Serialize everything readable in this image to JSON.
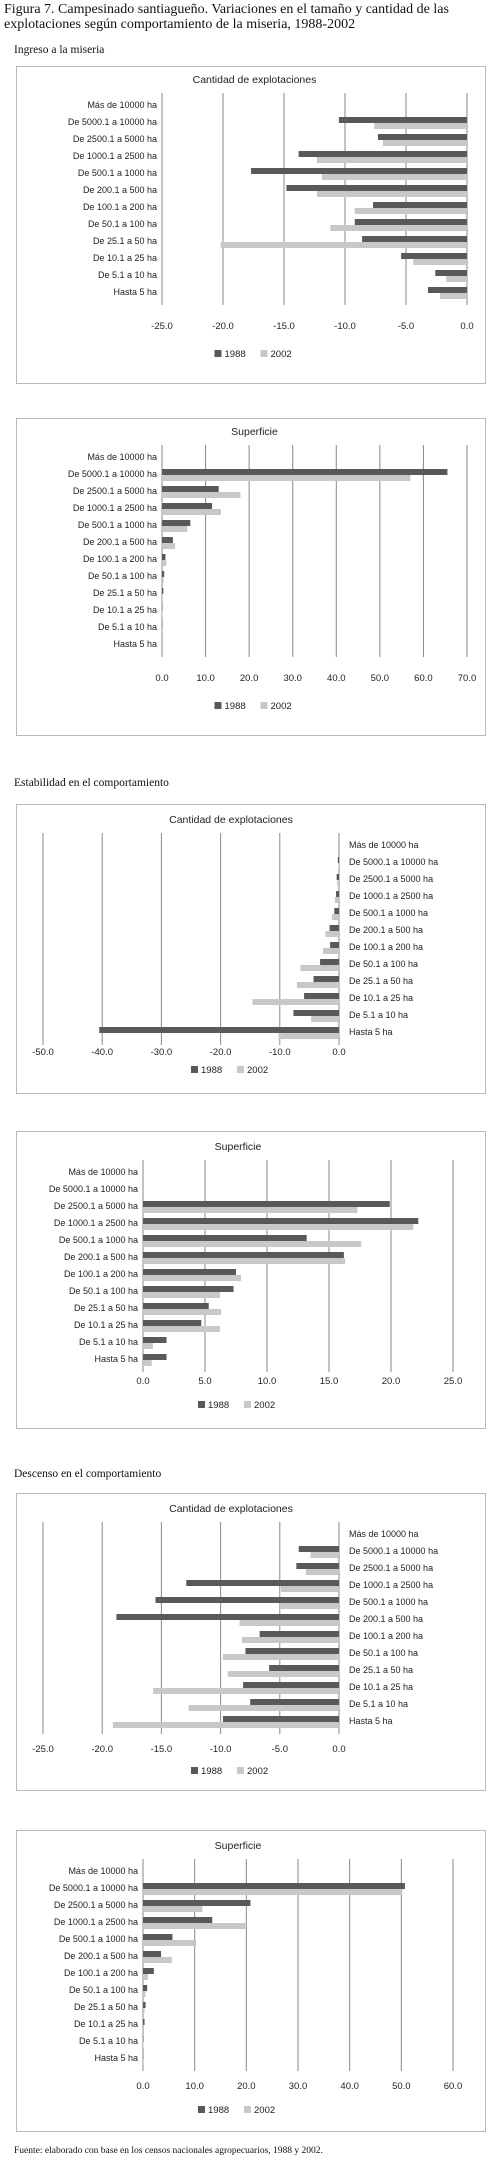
{
  "figure_title": "Figura 7. Campesinado santiagueño. Variaciones en el tamaño y cantidad de las explotaciones según comportamiento de la miseria, 1988-2002",
  "sections": [
    {
      "label": "Ingreso a la miseria"
    },
    {
      "label": "Estabilidad en el comportamiento"
    },
    {
      "label": "Descenso en el comportamiento"
    }
  ],
  "source_note": "Fuente: elaborado con base en los censos nacionales agropecuarios, 1988 y 2002.",
  "colors": {
    "series_1988": "#595959",
    "series_2002": "#c8c8c8",
    "grid": "#8a8a8a",
    "border": "#b9b9b9"
  },
  "chart_data": [
    {
      "type": "bar",
      "orientation": "horizontal",
      "title": "Cantidad de explotaciones",
      "categories": [
        "Más de 10000 ha",
        "De 5000.1 a 10000 ha",
        "De 2500.1 a 5000 ha",
        "De 1000.1 a 2500 ha",
        "De 500.1 a 1000 ha",
        "De 200.1 a 500 ha",
        "De 100.1 a 200 ha",
        "De 50.1 a 100 ha",
        "De 25.1 a 50 ha",
        "De 10.1 a 25 ha",
        "De 5.1 a 10 ha",
        "Hasta 5 ha"
      ],
      "series": [
        {
          "name": "1988",
          "values": [
            0,
            -10.5,
            -7.3,
            -13.8,
            -17.7,
            -14.8,
            -7.7,
            -9.2,
            -8.6,
            -5.4,
            -2.6,
            -3.2
          ]
        },
        {
          "name": "2002",
          "values": [
            0,
            -7.6,
            -6.9,
            -12.3,
            -11.9,
            -12.3,
            -9.2,
            -11.2,
            -20.2,
            -4.4,
            -1.7,
            -2.2
          ]
        }
      ],
      "xlim": [
        -25,
        0
      ],
      "xticks": [
        "-25.0",
        "-20.0",
        "-15.0",
        "-10.0",
        "-5.0",
        "0.0"
      ],
      "labels_side": "left",
      "legend_order": [
        "1988",
        "2002"
      ],
      "legend_position": "bottom"
    },
    {
      "type": "bar",
      "orientation": "horizontal",
      "title": "Superficie",
      "categories": [
        "Más de 10000 ha",
        "De 5000.1 a 10000 ha",
        "De 2500.1 a 5000 ha",
        "De 1000.1 a 2500 ha",
        "De 500.1 a 1000 ha",
        "De 200.1 a 500 ha",
        "De 100.1 a 200 ha",
        "De 50.1 a 100 ha",
        "De 25.1 a 50 ha",
        "De 10.1 a 25 ha",
        "De 5.1 a 10 ha",
        "Hasta 5 ha"
      ],
      "series": [
        {
          "name": "1988",
          "values": [
            0,
            65.5,
            13.0,
            11.5,
            6.5,
            2.5,
            0.8,
            0.5,
            0.3,
            0.1,
            0.05,
            0.02
          ]
        },
        {
          "name": "2002",
          "values": [
            0,
            57.0,
            18.0,
            13.5,
            5.8,
            3.0,
            1.0,
            0.4,
            0.2,
            0.1,
            0.04,
            0.02
          ]
        }
      ],
      "xlim": [
        0,
        70
      ],
      "xticks": [
        "0.0",
        "10.0",
        "20.0",
        "30.0",
        "40.0",
        "50.0",
        "60.0",
        "70.0"
      ],
      "labels_side": "left",
      "legend_order": [
        "1988",
        "2002"
      ],
      "legend_position": "bottom"
    },
    {
      "type": "bar",
      "orientation": "horizontal",
      "title": "Cantidad de explotaciones",
      "categories": [
        "Más de 10000 ha",
        "De 5000.1 a 10000 ha",
        "De 2500.1 a 5000 ha",
        "De 1000.1 a 2500 ha",
        "De 500.1 a 1000 ha",
        "De 200.1 a 500 ha",
        "De 100.1 a 200 ha",
        "De 50.1 a 100 ha",
        "De 25.1 a 50 ha",
        "De 10.1 a 25 ha",
        "De 5.1 a 10 ha",
        "Hasta 5 ha"
      ],
      "series": [
        {
          "name": "1988",
          "values": [
            0,
            -0.2,
            -0.4,
            -0.5,
            -0.8,
            -1.6,
            -1.5,
            -3.2,
            -4.3,
            -5.9,
            -7.7,
            -40.5
          ]
        },
        {
          "name": "2002",
          "values": [
            0,
            -0.1,
            -0.3,
            -0.7,
            -1.2,
            -2.3,
            -2.7,
            -6.5,
            -7.1,
            -14.6,
            -4.7,
            -10.2
          ]
        }
      ],
      "xlim": [
        -50,
        0
      ],
      "xticks": [
        "-50.0",
        "-40.0",
        "-30.0",
        "-20.0",
        "-10.0",
        "0.0"
      ],
      "labels_side": "right",
      "legend_order": [
        "1988",
        "2002"
      ],
      "legend_position": "bottom"
    },
    {
      "type": "bar",
      "orientation": "horizontal",
      "title": "Superficie",
      "categories": [
        "Más de 10000 ha",
        "De 5000.1 a 10000 ha",
        "De 2500.1 a 5000 ha",
        "De 1000.1 a 2500 ha",
        "De 500.1 a 1000 ha",
        "De 200.1 a 500 ha",
        "De 100.1 a 200 ha",
        "De 50.1 a 100 ha",
        "De 25.1 a 50 ha",
        "De 10.1 a 25 ha",
        "De 5.1 a 10 ha",
        "Hasta 5 ha"
      ],
      "series": [
        {
          "name": "1988",
          "values": [
            0,
            0,
            19.9,
            22.2,
            13.2,
            16.2,
            7.5,
            7.3,
            5.3,
            4.7,
            1.9,
            1.9
          ]
        },
        {
          "name": "2002",
          "values": [
            0,
            0,
            17.3,
            21.8,
            17.6,
            16.3,
            7.9,
            6.2,
            6.3,
            6.2,
            0.8,
            0.7
          ]
        }
      ],
      "xlim": [
        0,
        25
      ],
      "xticks": [
        "0.0",
        "5.0",
        "10.0",
        "15.0",
        "20.0",
        "25.0"
      ],
      "labels_side": "left",
      "legend_order": [
        "1988",
        "2002"
      ],
      "legend_position": "bottom"
    },
    {
      "type": "bar",
      "orientation": "horizontal",
      "title": "Cantidad de explotaciones",
      "categories": [
        "Más de 10000 ha",
        "De 5000.1 a 10000 ha",
        "De 2500.1 a 5000 ha",
        "De 1000.1 a 2500 ha",
        "De 500.1 a 1000 ha",
        "De 200.1 a 500 ha",
        "De 100.1 a 200 ha",
        "De 50.1 a 100 ha",
        "De 25.1 a 50 ha",
        "De 10.1 a 25 ha",
        "De 5.1 a 10 ha",
        "Hasta 5 ha"
      ],
      "series": [
        {
          "name": "1988",
          "values": [
            0,
            -3.4,
            -3.6,
            -12.9,
            -15.5,
            -18.8,
            -6.7,
            -7.9,
            -5.9,
            -8.1,
            -7.5,
            -9.8
          ]
        },
        {
          "name": "2002",
          "values": [
            0,
            -2.4,
            -2.8,
            -4.9,
            -5.0,
            -8.4,
            -8.2,
            -9.8,
            -9.4,
            -15.7,
            -12.7,
            -19.1
          ]
        }
      ],
      "xlim": [
        -25,
        0
      ],
      "xticks": [
        "-25.0",
        "-20.0",
        "-15.0",
        "-10.0",
        "-5.0",
        "0.0"
      ],
      "labels_side": "right",
      "legend_order": [
        "1988",
        "2002"
      ],
      "legend_position": "bottom"
    },
    {
      "type": "bar",
      "orientation": "horizontal",
      "title": "Superficie",
      "categories": [
        "Más de 10000 ha",
        "De 5000.1 a 10000 ha",
        "De 2500.1 a 5000 ha",
        "De 1000.1 a 2500 ha",
        "De 500.1 a 1000 ha",
        "De 200.1 a 500 ha",
        "De 100.1 a 200 ha",
        "De 50.1 a 100 ha",
        "De 25.1 a 50 ha",
        "De 10.1 a 25 ha",
        "De 5.1 a 10 ha",
        "Hasta 5 ha"
      ],
      "series": [
        {
          "name": "1988",
          "values": [
            0,
            50.7,
            20.8,
            13.4,
            5.7,
            3.5,
            2.1,
            0.8,
            0.5,
            0.3,
            0.1,
            0.05
          ]
        },
        {
          "name": "2002",
          "values": [
            0,
            50.2,
            11.5,
            19.8,
            10.3,
            5.6,
            1.0,
            0.5,
            0.3,
            0.2,
            0.1,
            0.05
          ]
        }
      ],
      "xlim": [
        0,
        60
      ],
      "xticks": [
        "0.0",
        "10.0",
        "20.0",
        "30.0",
        "40.0",
        "50.0",
        "60.0"
      ],
      "labels_side": "left",
      "legend_order": [
        "1988",
        "2002"
      ],
      "legend_position": "bottom"
    }
  ]
}
